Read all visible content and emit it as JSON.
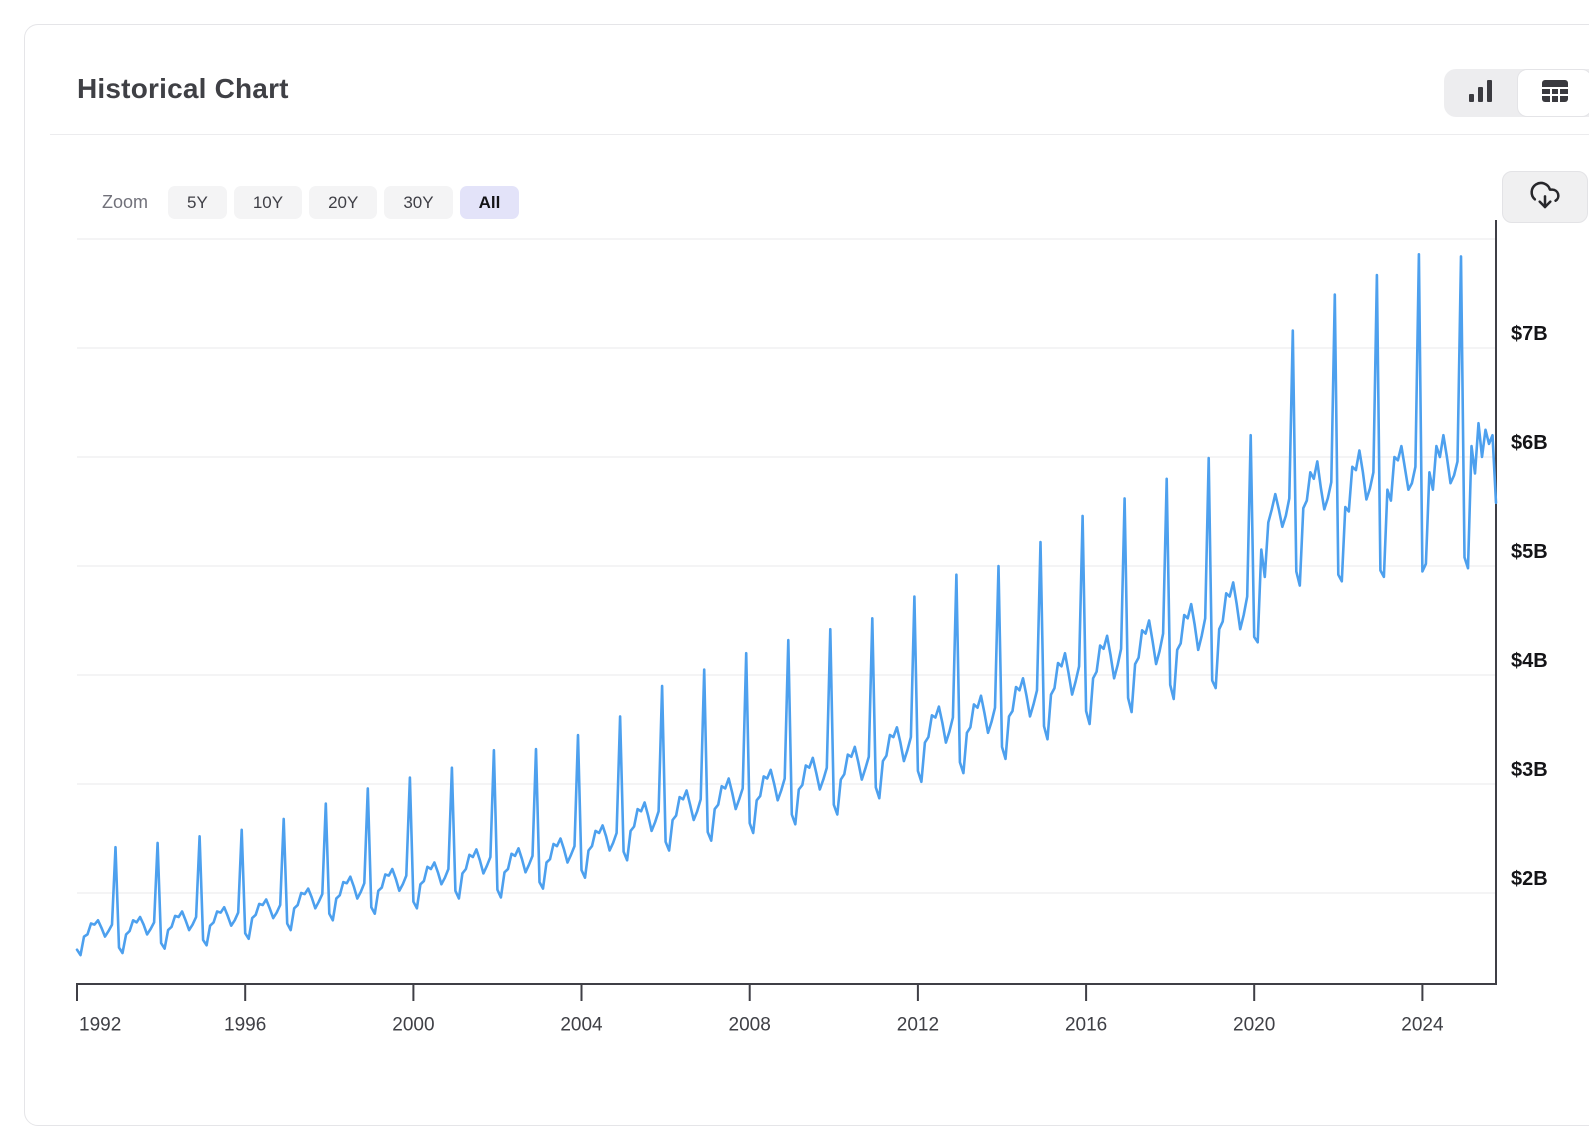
{
  "header": {
    "title": "Historical Chart"
  },
  "view_toggle": {
    "options": [
      {
        "name": "chart-view",
        "icon": "bar-chart-icon",
        "active": true
      },
      {
        "name": "table-view",
        "icon": "table-icon",
        "active": false
      }
    ]
  },
  "zoom_bar": {
    "label": "Zoom",
    "ranges": [
      "5Y",
      "10Y",
      "20Y",
      "30Y",
      "All"
    ],
    "active": "All"
  },
  "download": {
    "icon": "cloud-download-icon"
  },
  "chart_data": {
    "type": "line",
    "title": "Historical Chart",
    "unit": "USD billions",
    "frequency": "monthly",
    "start": "1992-01",
    "end": "2025-10",
    "line_color": "#4da0ee",
    "grid_on": true,
    "y_axis": {
      "side": "right",
      "labels": [
        "$2B",
        "$3B",
        "$4B",
        "$5B",
        "$6B",
        "$7B"
      ],
      "values": [
        2,
        3,
        4,
        5,
        6,
        7
      ],
      "gridlines": [
        2,
        3,
        4,
        5,
        6,
        7,
        8
      ],
      "ylim": [
        1.1,
        8.15
      ]
    },
    "x_axis": {
      "tick_years": [
        1992,
        1996,
        2000,
        2004,
        2008,
        2012,
        2016,
        2020,
        2024
      ]
    },
    "values": [
      1.48,
      1.43,
      1.6,
      1.62,
      1.72,
      1.71,
      1.75,
      1.68,
      1.6,
      1.65,
      1.71,
      2.42,
      1.5,
      1.45,
      1.62,
      1.65,
      1.75,
      1.73,
      1.78,
      1.71,
      1.62,
      1.67,
      1.73,
      2.46,
      1.54,
      1.49,
      1.66,
      1.69,
      1.79,
      1.78,
      1.83,
      1.75,
      1.66,
      1.71,
      1.78,
      2.52,
      1.57,
      1.52,
      1.7,
      1.73,
      1.83,
      1.82,
      1.87,
      1.79,
      1.7,
      1.75,
      1.82,
      2.58,
      1.63,
      1.58,
      1.77,
      1.8,
      1.9,
      1.89,
      1.94,
      1.86,
      1.77,
      1.82,
      1.89,
      2.68,
      1.72,
      1.66,
      1.86,
      1.89,
      2.0,
      1.99,
      2.04,
      1.96,
      1.86,
      1.92,
      1.99,
      2.82,
      1.81,
      1.75,
      1.95,
      1.98,
      2.1,
      2.09,
      2.15,
      2.06,
      1.95,
      2.01,
      2.09,
      2.96,
      1.87,
      1.81,
      2.02,
      2.05,
      2.17,
      2.16,
      2.22,
      2.13,
      2.02,
      2.08,
      2.16,
      3.06,
      1.92,
      1.86,
      2.08,
      2.11,
      2.24,
      2.22,
      2.28,
      2.19,
      2.08,
      2.14,
      2.22,
      3.15,
      2.02,
      1.95,
      2.18,
      2.22,
      2.35,
      2.33,
      2.4,
      2.3,
      2.18,
      2.25,
      2.33,
      3.31,
      2.03,
      1.96,
      2.19,
      2.22,
      2.36,
      2.34,
      2.41,
      2.31,
      2.19,
      2.26,
      2.34,
      3.32,
      2.1,
      2.04,
      2.28,
      2.31,
      2.45,
      2.43,
      2.5,
      2.4,
      2.28,
      2.35,
      2.43,
      3.45,
      2.21,
      2.14,
      2.39,
      2.43,
      2.57,
      2.55,
      2.62,
      2.52,
      2.39,
      2.46,
      2.55,
      3.62,
      2.38,
      2.3,
      2.57,
      2.61,
      2.77,
      2.75,
      2.83,
      2.71,
      2.57,
      2.65,
      2.75,
      3.9,
      2.47,
      2.39,
      2.67,
      2.71,
      2.88,
      2.86,
      2.94,
      2.81,
      2.67,
      2.75,
      2.86,
      4.05,
      2.56,
      2.48,
      2.77,
      2.81,
      2.98,
      2.96,
      3.05,
      2.92,
      2.77,
      2.86,
      2.96,
      4.2,
      2.64,
      2.55,
      2.85,
      2.89,
      3.07,
      3.05,
      3.13,
      3.0,
      2.85,
      2.94,
      3.05,
      4.32,
      2.72,
      2.63,
      2.95,
      2.99,
      3.17,
      3.15,
      3.24,
      3.1,
      2.95,
      3.04,
      3.15,
      4.42,
      2.81,
      2.72,
      3.04,
      3.09,
      3.27,
      3.25,
      3.34,
      3.2,
      3.04,
      3.14,
      3.25,
      4.52,
      2.97,
      2.87,
      3.21,
      3.26,
      3.45,
      3.43,
      3.52,
      3.38,
      3.21,
      3.31,
      3.43,
      4.72,
      3.12,
      3.02,
      3.38,
      3.43,
      3.63,
      3.61,
      3.71,
      3.56,
      3.38,
      3.48,
      3.61,
      4.92,
      3.2,
      3.1,
      3.47,
      3.52,
      3.73,
      3.7,
      3.81,
      3.65,
      3.47,
      3.57,
      3.7,
      5.0,
      3.34,
      3.23,
      3.62,
      3.67,
      3.89,
      3.86,
      3.97,
      3.81,
      3.62,
      3.73,
      3.86,
      5.22,
      3.53,
      3.41,
      3.82,
      3.88,
      4.11,
      4.08,
      4.2,
      4.02,
      3.82,
      3.94,
      4.08,
      5.46,
      3.67,
      3.55,
      3.97,
      4.03,
      4.27,
      4.24,
      4.36,
      4.18,
      3.97,
      4.09,
      4.24,
      5.62,
      3.79,
      3.66,
      4.1,
      4.16,
      4.41,
      4.38,
      4.5,
      4.31,
      4.1,
      4.22,
      4.38,
      5.8,
      3.91,
      3.78,
      4.23,
      4.29,
      4.55,
      4.52,
      4.65,
      4.46,
      4.23,
      4.36,
      4.52,
      5.99,
      3.95,
      3.88,
      4.42,
      4.49,
      4.75,
      4.72,
      4.85,
      4.65,
      4.42,
      4.55,
      4.72,
      6.2,
      4.35,
      4.3,
      5.15,
      4.9,
      5.4,
      5.52,
      5.66,
      5.52,
      5.36,
      5.46,
      5.62,
      7.16,
      4.95,
      4.82,
      5.53,
      5.6,
      5.86,
      5.8,
      5.96,
      5.72,
      5.52,
      5.62,
      5.77,
      7.49,
      4.92,
      4.86,
      5.54,
      5.5,
      5.91,
      5.88,
      6.06,
      5.86,
      5.61,
      5.71,
      5.86,
      7.67,
      4.96,
      4.9,
      5.7,
      5.6,
      6.0,
      5.97,
      6.1,
      5.9,
      5.7,
      5.76,
      5.91,
      7.86,
      4.95,
      5.02,
      5.86,
      5.7,
      6.1,
      6.0,
      6.2,
      6.0,
      5.76,
      5.83,
      5.96,
      7.84,
      5.08,
      4.98,
      6.1,
      5.85,
      6.31,
      6.0,
      6.25,
      6.12,
      6.2,
      5.58
    ]
  }
}
